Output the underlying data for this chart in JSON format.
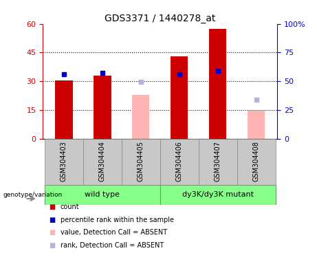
{
  "title": "GDS3371 / 1440278_at",
  "samples": [
    "GSM304403",
    "GSM304404",
    "GSM304405",
    "GSM304406",
    "GSM304407",
    "GSM304408"
  ],
  "count_values": [
    30.5,
    33.0,
    null,
    43.0,
    57.5,
    null
  ],
  "percentile_values": [
    33.5,
    34.5,
    null,
    33.5,
    35.5,
    null
  ],
  "absent_value_values": [
    null,
    null,
    23.0,
    null,
    null,
    14.5
  ],
  "absent_rank_values": [
    null,
    null,
    29.5,
    null,
    null,
    20.5
  ],
  "left_ylim": [
    0,
    60
  ],
  "right_ylim": [
    0,
    100
  ],
  "left_yticks": [
    0,
    15,
    30,
    45,
    60
  ],
  "right_yticks": [
    0,
    25,
    50,
    75,
    100
  ],
  "right_yticklabels": [
    "0",
    "25",
    "50",
    "75",
    "100%"
  ],
  "color_count": "#cc0000",
  "color_percentile": "#0000cc",
  "color_absent_value": "#ffb3b3",
  "color_absent_rank": "#b3b3dd",
  "bar_width": 0.45,
  "marker_size": 5,
  "title_fontsize": 10,
  "tick_fontsize": 8,
  "label_fontsize": 7.5,
  "legend_fontsize": 7,
  "wt_color": "#88ff88",
  "mut_color": "#88ff88",
  "sample_bg": "#c8c8c8"
}
